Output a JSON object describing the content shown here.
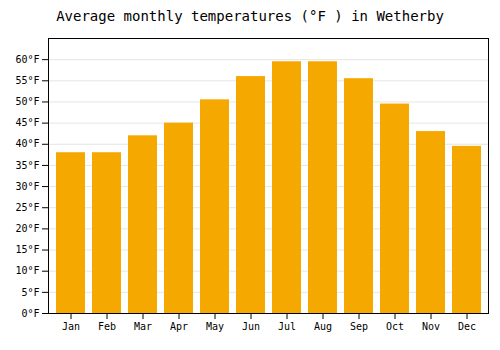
{
  "chart_data": {
    "type": "bar",
    "title": "Average monthly temperatures (°F ) in Wetherby",
    "categories": [
      "Jan",
      "Feb",
      "Mar",
      "Apr",
      "May",
      "Jun",
      "Jul",
      "Aug",
      "Sep",
      "Oct",
      "Nov",
      "Dec"
    ],
    "values": [
      38.0,
      38.0,
      42.0,
      45.0,
      50.5,
      56.0,
      59.5,
      59.5,
      55.5,
      49.5,
      43.0,
      39.5
    ],
    "color": "#F5A800",
    "ylim": [
      0,
      65
    ],
    "yticks": [
      {
        "value": 0,
        "label": "0°F"
      },
      {
        "value": 5,
        "label": "5°F"
      },
      {
        "value": 10,
        "label": "10°F"
      },
      {
        "value": 15,
        "label": "15°F"
      },
      {
        "value": 20,
        "label": "20°F"
      },
      {
        "value": 25,
        "label": "25°F"
      },
      {
        "value": 30,
        "label": "30°F"
      },
      {
        "value": 35,
        "label": "35°F"
      },
      {
        "value": 40,
        "label": "40°F"
      },
      {
        "value": 45,
        "label": "45°F"
      },
      {
        "value": 50,
        "label": "50°F"
      },
      {
        "value": 55,
        "label": "55°F"
      },
      {
        "value": 60,
        "label": "60°F"
      }
    ],
    "grid": true
  }
}
